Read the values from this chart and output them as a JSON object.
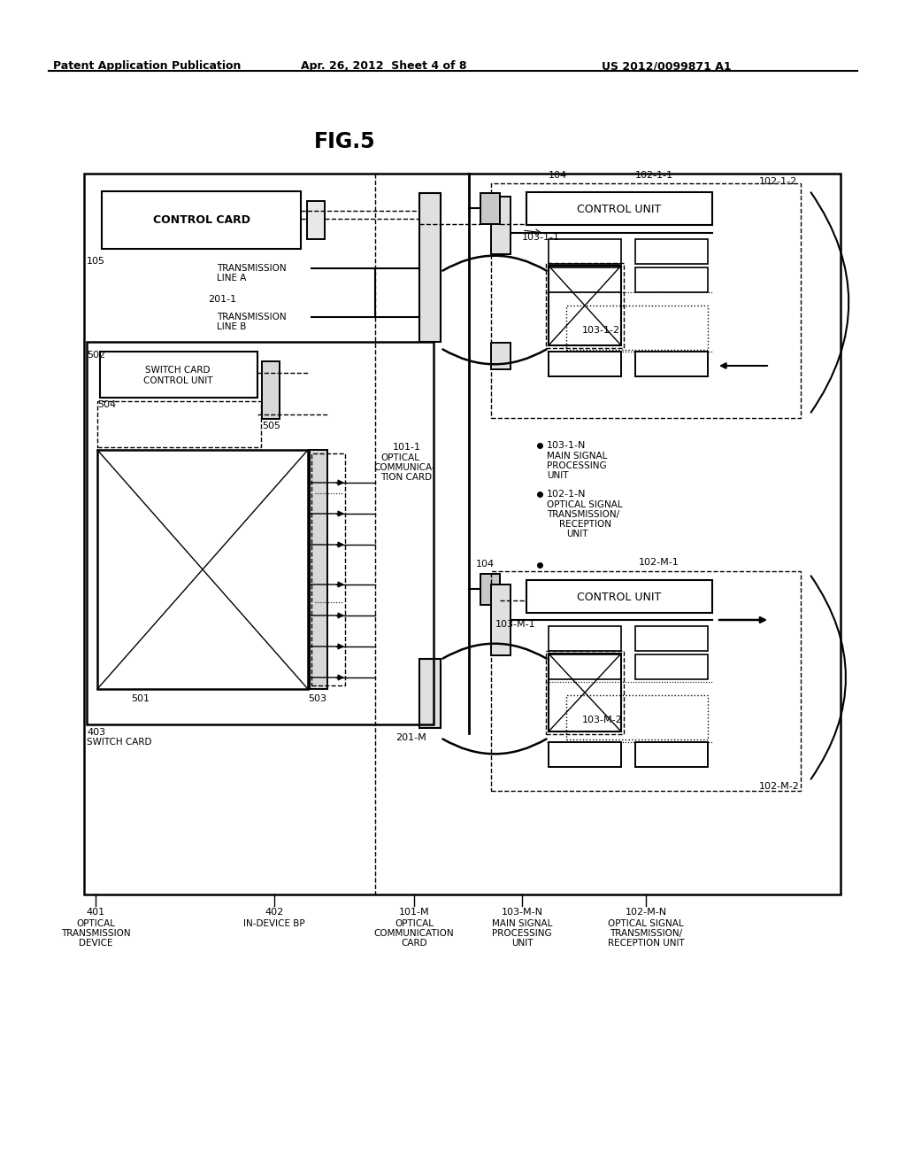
{
  "bg_color": "#ffffff",
  "header_left": "Patent Application Publication",
  "header_center": "Apr. 26, 2012  Sheet 4 of 8",
  "header_right": "US 2012/0099871 A1",
  "fig_title": "FIG.5"
}
